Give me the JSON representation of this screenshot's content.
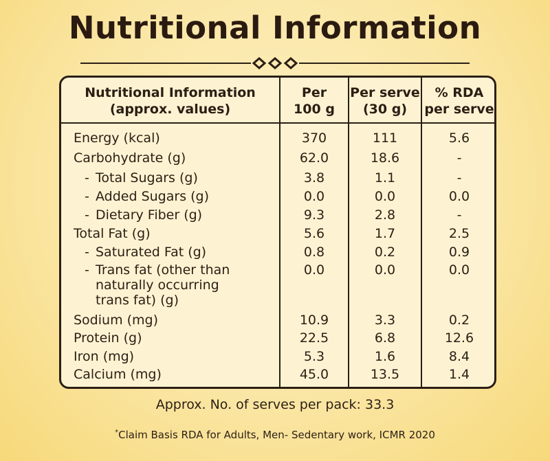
{
  "title": "Nutritional Information",
  "header": {
    "col0_line1": "Nutritional Information",
    "col0_line2": "(approx. values)",
    "col1_line1": "Per",
    "col1_line2": "100 g",
    "col2_line1": "Per serve",
    "col2_line2": "(30 g)",
    "col3_line1": "% RDA",
    "col3_line2": "per serve"
  },
  "rows": [
    {
      "name": "Energy (kcal)",
      "per100": "370",
      "serve": "111",
      "rda": "5.6"
    },
    {
      "name": "Carbohydrate (g)",
      "per100": "62.0",
      "serve": "18.6",
      "rda": "-"
    },
    {
      "name": "Total Sugars (g)",
      "per100": "3.8",
      "serve": "1.1",
      "rda": "-"
    },
    {
      "name": "Added Sugars (g)",
      "per100": "0.0",
      "serve": "0.0",
      "rda": "0.0"
    },
    {
      "name": "Dietary Fiber (g)",
      "per100": "9.3",
      "serve": "2.8",
      "rda": "-"
    },
    {
      "name": "Total Fat (g)",
      "per100": "5.6",
      "serve": "1.7",
      "rda": "2.5"
    },
    {
      "name": "Saturated Fat (g)",
      "per100": "0.8",
      "serve": "0.2",
      "rda": "0.9"
    },
    {
      "name_line1": "Trans fat (other than",
      "name_line2": "naturally occurring",
      "name_line3": "trans fat) (g)",
      "per100": "0.0",
      "serve": "0.0",
      "rda": "0.0"
    },
    {
      "name": "Sodium (mg)",
      "per100": "10.9",
      "serve": "3.3",
      "rda": "0.2"
    },
    {
      "name": "Protein (g)",
      "per100": "22.5",
      "serve": "6.8",
      "rda": "12.6"
    },
    {
      "name": "Iron (mg)",
      "per100": "5.3",
      "serve": "1.6",
      "rda": "8.4"
    },
    {
      "name": "Calcium (mg)",
      "per100": "45.0",
      "serve": "13.5",
      "rda": "1.4"
    }
  ],
  "sub_dash": "-",
  "serves_note": "Approx. No. of serves per pack: 33.3",
  "claim_mark": "*",
  "claim_text": "Claim Basis RDA for Adults, Men- Sedentary work, ICMR 2020",
  "colors": {
    "background": "#fae6a4",
    "panel": "#fdf3d2",
    "ink": "#2b1e14"
  }
}
